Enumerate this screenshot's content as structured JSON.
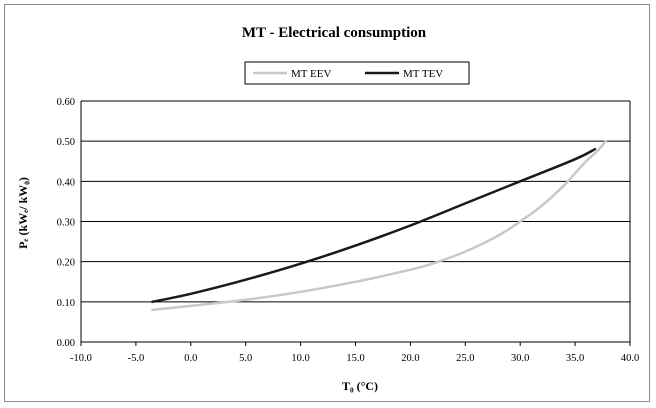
{
  "chart_data": {
    "type": "line",
    "title": "MT - Electrical consumption",
    "xlabel": "T₀ (°C)",
    "ylabel": "Pₑ (kWₑ/ kW₀)",
    "xlim": [
      -10.0,
      40.0
    ],
    "ylim": [
      0.0,
      0.6
    ],
    "x_ticks": [
      "-10.0",
      "-5.0",
      "0.0",
      "5.0",
      "10.0",
      "15.0",
      "20.0",
      "25.0",
      "30.0",
      "35.0",
      "40.0"
    ],
    "y_ticks": [
      "0.00",
      "0.10",
      "0.20",
      "0.30",
      "0.40",
      "0.50",
      "0.60"
    ],
    "grid": "horizontal",
    "legend_position": "top-center",
    "series": [
      {
        "name": "MT EEV",
        "color": "#c8c8c8",
        "x": [
          -3.5,
          0,
          5,
          10,
          15,
          20,
          22,
          25,
          28,
          30,
          32,
          34,
          35,
          36,
          37,
          37.8
        ],
        "y": [
          0.08,
          0.09,
          0.105,
          0.125,
          0.15,
          0.18,
          0.195,
          0.225,
          0.265,
          0.3,
          0.34,
          0.39,
          0.42,
          0.45,
          0.475,
          0.5
        ]
      },
      {
        "name": "MT TEV",
        "color": "#1a1a1a",
        "x": [
          -3.5,
          0,
          5,
          10,
          15,
          20,
          25,
          30,
          35,
          36.8
        ],
        "y": [
          0.1,
          0.12,
          0.155,
          0.195,
          0.24,
          0.29,
          0.345,
          0.4,
          0.455,
          0.48
        ]
      }
    ]
  }
}
